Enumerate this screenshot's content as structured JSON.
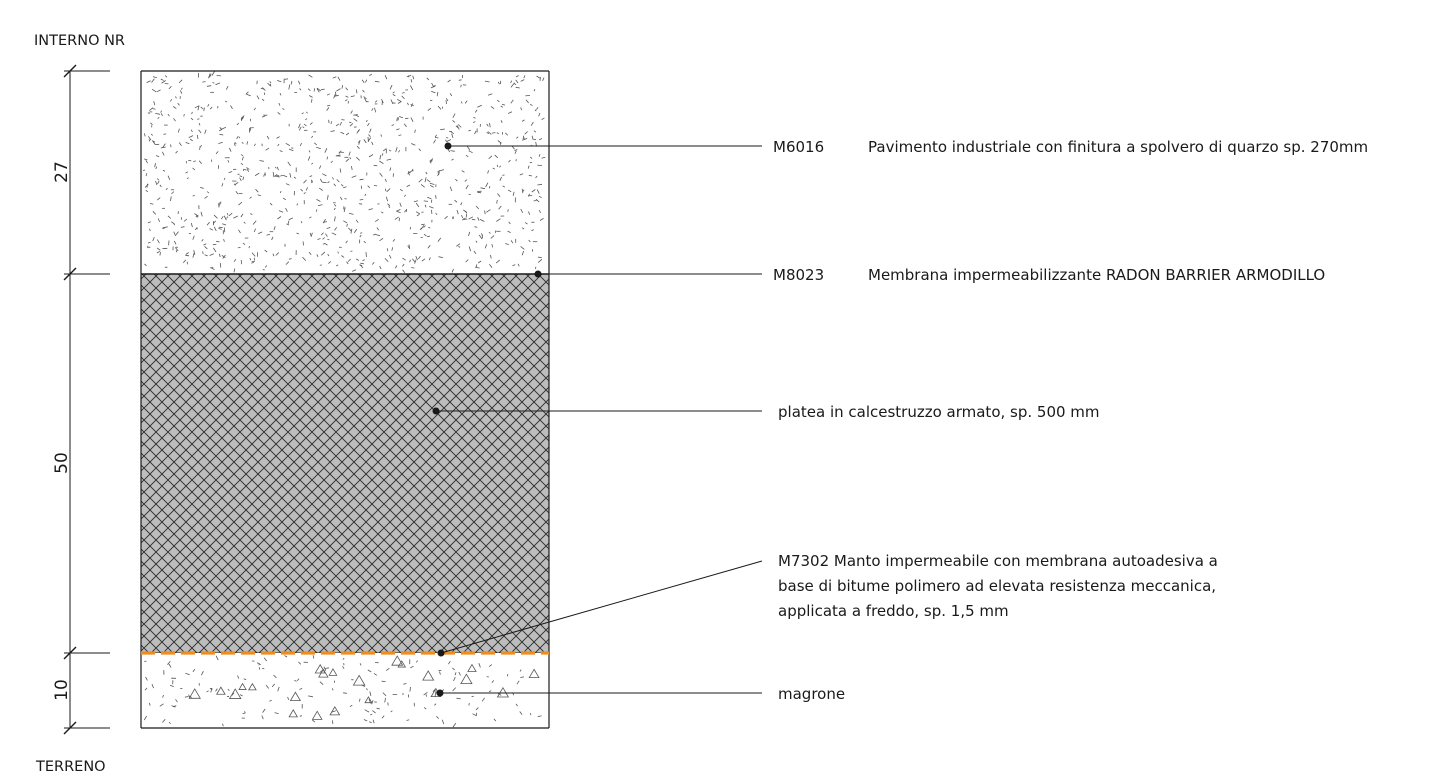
{
  "top_label": "INTERNO NR",
  "bottom_label": "TERRENO",
  "dimensions": [
    "27",
    "50",
    "10"
  ],
  "layers": [
    {
      "name": "pavimento",
      "code": "M6016",
      "text": "Pavimento industriale con finitura a spolvero di quarzo sp. 270mm"
    },
    {
      "name": "membrana",
      "code": "M8023",
      "text": "Membrana impermeabilizzante RADON BARRIER ARMODILLO"
    },
    {
      "name": "platea",
      "code": "",
      "text": "platea in calcestruzzo armato, sp. 500 mm"
    },
    {
      "name": "manto",
      "code": "",
      "lines": [
        "M7302 Manto impermeabile con membrana autoadesiva  a",
        "base di bitume polimero ad elevata resistenza meccanica,",
        "applicata a freddo, sp. 1,5 mm"
      ]
    },
    {
      "name": "magrone",
      "code": "",
      "text": "magrone"
    }
  ],
  "colors": {
    "hatch_fill": "#bdbdbd",
    "membrane": "#f08c1e",
    "line": "#1a1a1a"
  }
}
